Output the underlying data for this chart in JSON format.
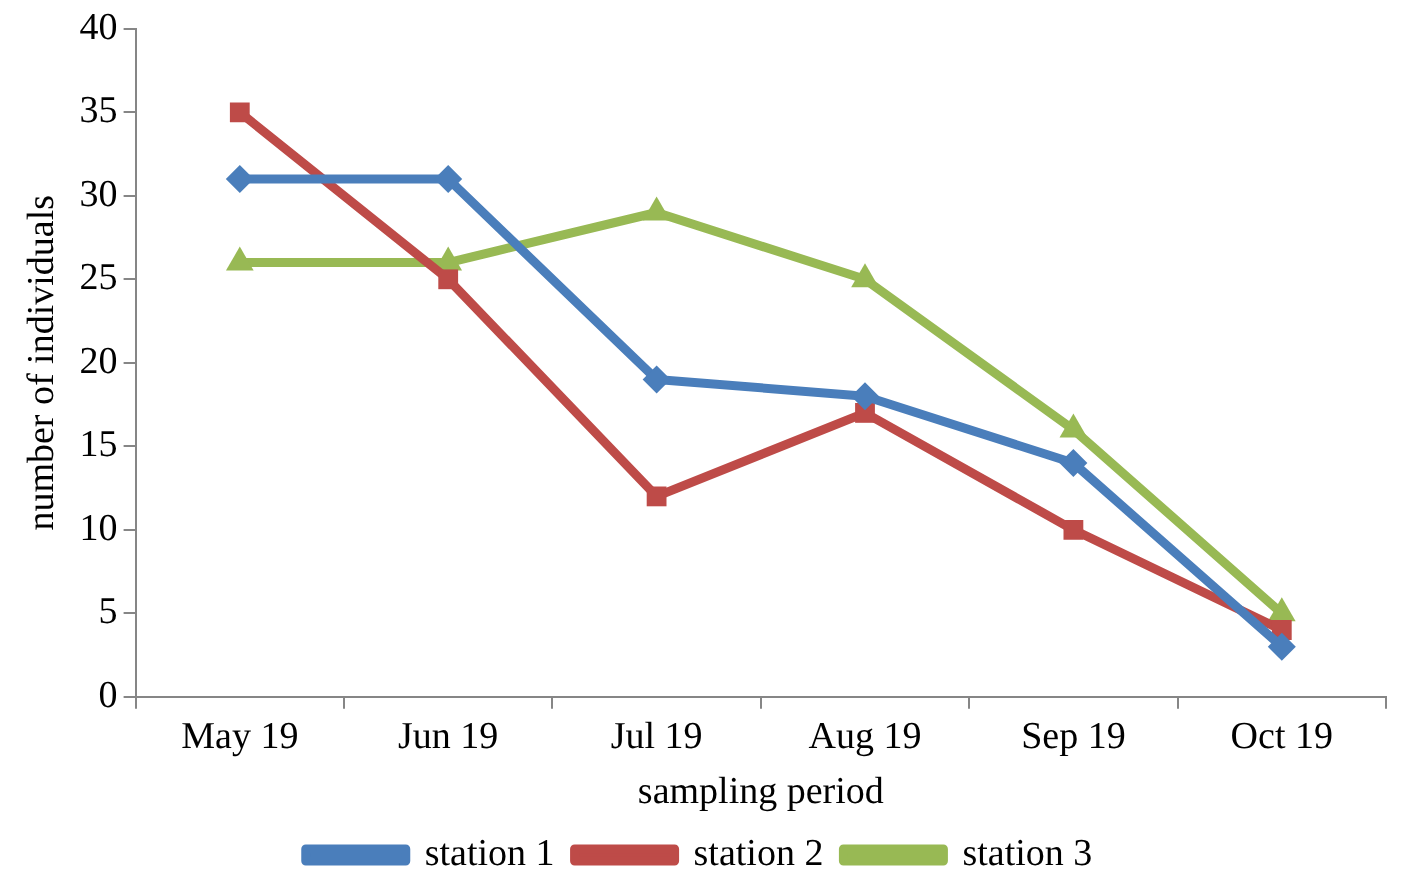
{
  "chart_data": {
    "type": "line",
    "xlabel": "sampling period",
    "ylabel": "number of individuals",
    "categories": [
      "May 19",
      "Jun 19",
      "Jul 19",
      "Aug 19",
      "Sep 19",
      "Oct 19"
    ],
    "series": [
      {
        "name": "station 1",
        "color": "#4a7ebb",
        "values": [
          31,
          31,
          19,
          18,
          14,
          3
        ],
        "marker": "diamond"
      },
      {
        "name": "station 2",
        "color": "#be4b48",
        "values": [
          35,
          25,
          12,
          17,
          10,
          4
        ],
        "marker": "square"
      },
      {
        "name": "station 3",
        "color": "#98b954",
        "values": [
          26,
          26,
          29,
          25,
          16,
          5
        ],
        "marker": "triangle"
      }
    ],
    "ylim": [
      0,
      40
    ],
    "yticks": [
      0,
      5,
      10,
      15,
      20,
      25,
      30,
      35,
      40
    ],
    "grid": false,
    "legend": "bottom",
    "line_style": "solid"
  }
}
